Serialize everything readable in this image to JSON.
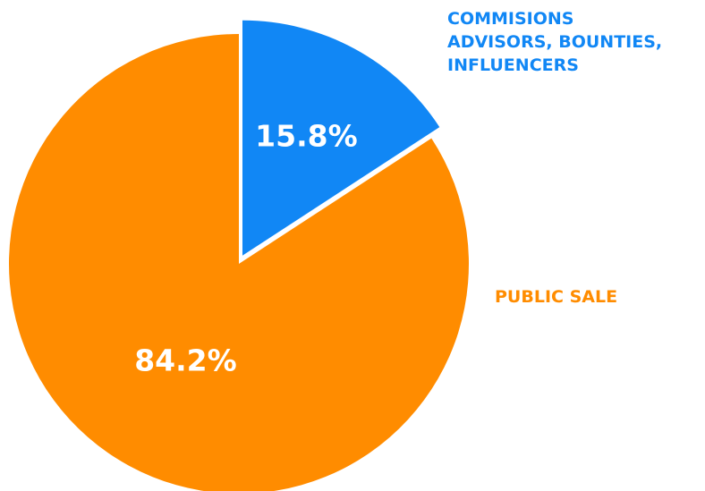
{
  "chart_data": {
    "type": "pie",
    "categories": [
      "COMMISIONS\nADVISORS, BOUNTIES,\nINFLUENCERS",
      "PUBLIC SALE"
    ],
    "values": [
      15.8,
      84.2
    ],
    "value_labels": [
      "15.8%",
      "84.2%"
    ],
    "colors": [
      "#1187f5",
      "#ff8c00"
    ]
  }
}
